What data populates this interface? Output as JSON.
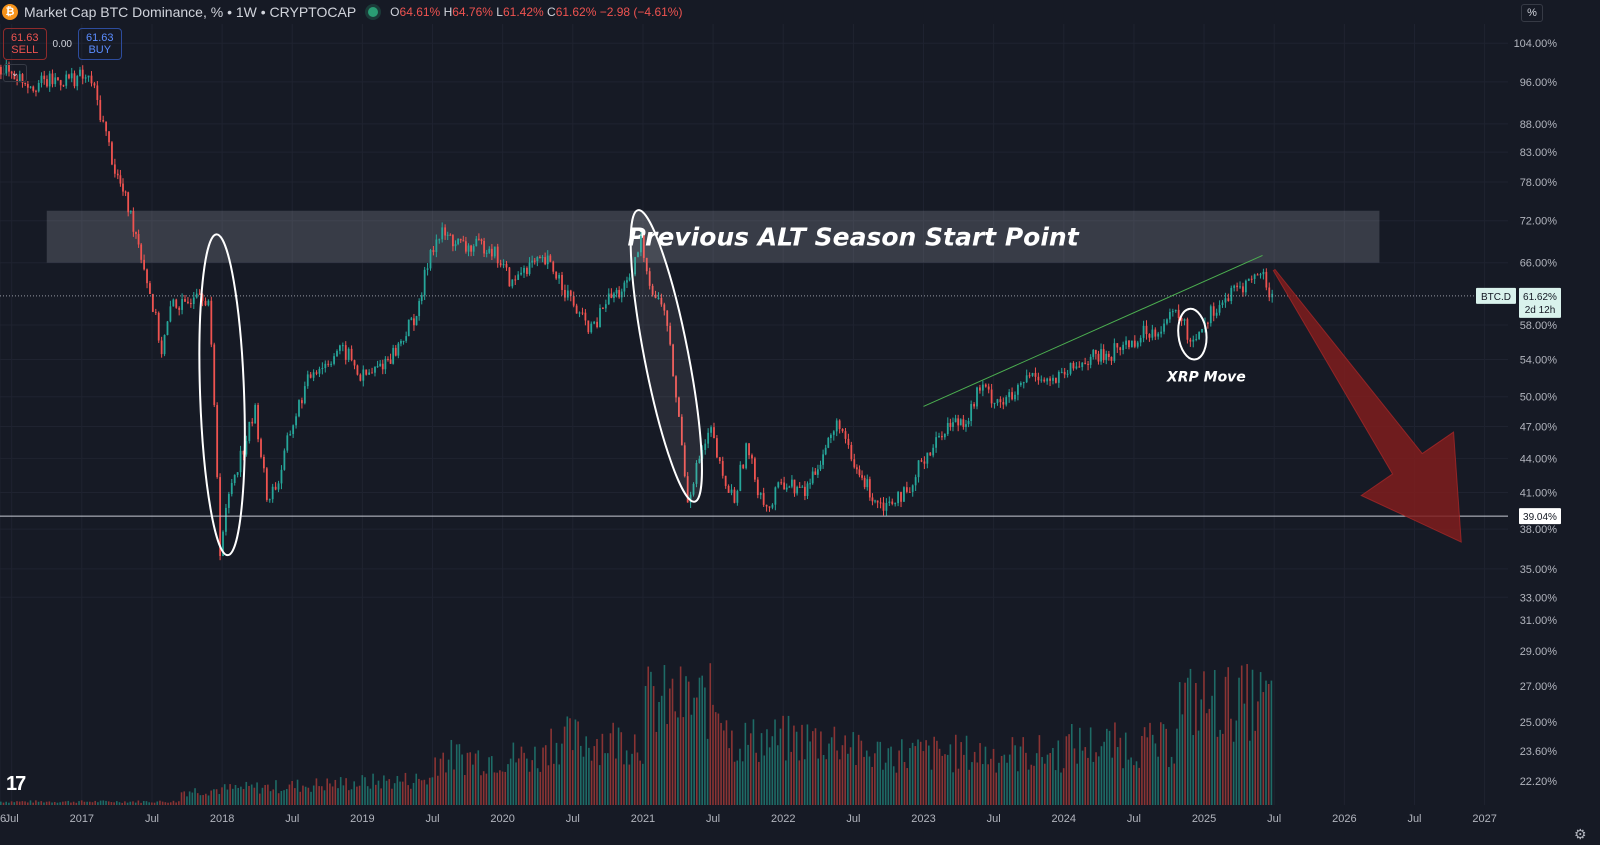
{
  "header": {
    "logo_text": "₿",
    "title": "Market Cap BTC Dominance, % • 1W • CRYPTOCAP",
    "open_label": "O",
    "open": "64.61%",
    "high_label": "H",
    "high": "64.76%",
    "low_label": "L",
    "low": "61.42%",
    "close_label": "C",
    "close": "61.62%",
    "change": "−2.98 (−4.61%)"
  },
  "trade": {
    "sell_price": "61.63",
    "sell_label": "SELL",
    "spread": "0.00",
    "buy_price": "61.63",
    "buy_label": "BUY"
  },
  "collapse_icon": "chevron-down-icon",
  "scale_mode": "%",
  "settings_icon": "gear-icon",
  "colors": {
    "background": "#161a25",
    "up": "#26a69a",
    "down": "#ef5350",
    "zone": "#9598a1",
    "arrow": "#7f1d1d",
    "trend": "#4caf50"
  },
  "chart_data": {
    "type": "candlestick",
    "title": "Market Cap BTC Dominance, % • 1W • CRYPTOCAP",
    "y_scale": "log",
    "ylim": [
      33.5,
      106
    ],
    "xlim": [
      "2016-06",
      "2027-03"
    ],
    "y_ticks": [
      "104.00%",
      "96.00%",
      "88.00%",
      "83.00%",
      "78.00%",
      "72.00%",
      "66.00%",
      "58.00%",
      "54.00%",
      "50.00%",
      "47.00%",
      "44.00%",
      "41.00%",
      "38.00%",
      "35.00%",
      "33.00%"
    ],
    "x_ticks": [
      {
        "date": "2016-06",
        "label": "6"
      },
      {
        "date": "2016-07",
        "label": "Jul"
      },
      {
        "date": "2017-01",
        "label": "2017"
      },
      {
        "date": "2017-07",
        "label": "Jul"
      },
      {
        "date": "2018-01",
        "label": "2018"
      },
      {
        "date": "2018-07",
        "label": "Jul"
      },
      {
        "date": "2019-01",
        "label": "2019"
      },
      {
        "date": "2019-07",
        "label": "Jul"
      },
      {
        "date": "2020-01",
        "label": "2020"
      },
      {
        "date": "2020-07",
        "label": "Jul"
      },
      {
        "date": "2021-01",
        "label": "2021"
      },
      {
        "date": "2021-07",
        "label": "Jul"
      },
      {
        "date": "2022-01",
        "label": "2022"
      },
      {
        "date": "2022-07",
        "label": "Jul"
      },
      {
        "date": "2023-01",
        "label": "2023"
      },
      {
        "date": "2023-07",
        "label": "Jul"
      },
      {
        "date": "2024-01",
        "label": "2024"
      },
      {
        "date": "2024-07",
        "label": "Jul"
      },
      {
        "date": "2025-01",
        "label": "2025"
      },
      {
        "date": "2025-07",
        "label": "Jul"
      },
      {
        "date": "2026-01",
        "label": "2026"
      },
      {
        "date": "2026-07",
        "label": "Jul"
      },
      {
        "date": "2027-01",
        "label": "2027"
      }
    ],
    "price_path": [
      [
        "2016-06",
        99.0
      ],
      [
        "2016-09",
        95.5
      ],
      [
        "2017-01",
        97.0
      ],
      [
        "2017-02",
        96.0
      ],
      [
        "2017-03",
        88.0
      ],
      [
        "2017-04",
        80.0
      ],
      [
        "2017-06",
        69.0
      ],
      [
        "2017-07",
        62.0
      ],
      [
        "2017-08",
        55.0
      ],
      [
        "2017-09",
        61.0
      ],
      [
        "2017-10",
        60.0
      ],
      [
        "2017-11",
        63.0
      ],
      [
        "2017-12",
        61.0
      ],
      [
        "2018-01",
        36.5
      ],
      [
        "2018-02",
        42.0
      ],
      [
        "2018-03",
        45.0
      ],
      [
        "2018-04",
        48.5
      ],
      [
        "2018-05",
        40.5
      ],
      [
        "2018-06",
        42.0
      ],
      [
        "2018-07",
        46.5
      ],
      [
        "2018-08",
        50.0
      ],
      [
        "2018-09",
        53.0
      ],
      [
        "2018-10",
        53.5
      ],
      [
        "2018-11",
        55.0
      ],
      [
        "2018-12",
        54.5
      ],
      [
        "2019-01",
        52.0
      ],
      [
        "2019-02",
        52.5
      ],
      [
        "2019-04",
        55.0
      ],
      [
        "2019-06",
        60.0
      ],
      [
        "2019-07",
        68.0
      ],
      [
        "2019-08",
        70.0
      ],
      [
        "2019-10",
        68.0
      ],
      [
        "2019-12",
        68.5
      ],
      [
        "2020-01",
        66.0
      ],
      [
        "2020-02",
        63.0
      ],
      [
        "2020-03",
        65.5
      ],
      [
        "2020-05",
        66.0
      ],
      [
        "2020-06",
        64.0
      ],
      [
        "2020-07",
        61.0
      ],
      [
        "2020-08",
        58.5
      ],
      [
        "2020-09",
        57.5
      ],
      [
        "2020-10",
        61.0
      ],
      [
        "2020-12",
        63.0
      ],
      [
        "2021-01",
        69.0
      ],
      [
        "2021-02",
        62.0
      ],
      [
        "2021-03",
        60.0
      ],
      [
        "2021-04",
        50.0
      ],
      [
        "2021-05",
        40.5
      ],
      [
        "2021-06",
        44.0
      ],
      [
        "2021-07",
        46.5
      ],
      [
        "2021-08",
        42.0
      ],
      [
        "2021-09",
        40.5
      ],
      [
        "2021-10",
        45.0
      ],
      [
        "2021-11",
        41.5
      ],
      [
        "2021-12",
        39.5
      ],
      [
        "2022-01",
        42.0
      ],
      [
        "2022-03",
        41.0
      ],
      [
        "2022-05",
        45.5
      ],
      [
        "2022-06",
        47.5
      ],
      [
        "2022-07",
        43.5
      ],
      [
        "2022-09",
        40.5
      ],
      [
        "2022-10",
        40.0
      ],
      [
        "2022-11",
        41.0
      ],
      [
        "2022-12",
        40.5
      ],
      [
        "2023-01",
        44.0
      ],
      [
        "2023-02",
        45.0
      ],
      [
        "2023-03",
        47.0
      ],
      [
        "2023-05",
        48.0
      ],
      [
        "2023-06",
        51.0
      ],
      [
        "2023-07",
        50.0
      ],
      [
        "2023-08",
        49.5
      ],
      [
        "2023-09",
        50.0
      ],
      [
        "2023-10",
        52.0
      ],
      [
        "2023-11",
        52.5
      ],
      [
        "2023-12",
        51.5
      ],
      [
        "2024-01",
        52.0
      ],
      [
        "2024-02",
        53.0
      ],
      [
        "2024-03",
        54.0
      ],
      [
        "2024-05",
        54.5
      ],
      [
        "2024-06",
        55.5
      ],
      [
        "2024-07",
        56.0
      ],
      [
        "2024-08",
        57.0
      ],
      [
        "2024-09",
        57.5
      ],
      [
        "2024-10",
        58.5
      ],
      [
        "2024-11",
        59.5
      ],
      [
        "2024-12",
        56.0
      ],
      [
        "2025-01",
        58.0
      ],
      [
        "2025-02",
        60.0
      ],
      [
        "2025-03",
        61.0
      ],
      [
        "2025-04",
        62.5
      ],
      [
        "2025-05",
        63.5
      ],
      [
        "2025-06",
        64.6
      ],
      [
        "2025-07",
        61.62
      ]
    ],
    "last_price_label": "BTC.D",
    "last_price": "61.62%",
    "countdown": "2d 12h",
    "support_level_value": 39.04,
    "support_level_label": "39.04%",
    "volume_axis_ticks": [
      "31.00%",
      "29.00%",
      "27.00%",
      "25.00%",
      "23.60%",
      "22.20%"
    ],
    "annotations": {
      "zone_label": "Previous ALT Season Start Point",
      "zone_range": [
        66.0,
        73.5
      ],
      "zone_dates": [
        "2016-10",
        "2026-04"
      ],
      "circle_label": "XRP Move",
      "trendline": [
        [
          "2023-01",
          49.0
        ],
        [
          "2025-06",
          67.0
        ]
      ],
      "ellipses": [
        {
          "center_date": "2018-01",
          "top": 70.0,
          "bottom": 36.0
        },
        {
          "center_date": "2021-03",
          "top": 74.0,
          "bottom": 40.0
        },
        {
          "center_date": "2024-12",
          "top": 60.0,
          "bottom": 54.0
        }
      ],
      "projection_arrow": {
        "from": [
          "2025-07",
          65.0
        ],
        "to": [
          "2026-11",
          37.0
        ]
      }
    }
  }
}
